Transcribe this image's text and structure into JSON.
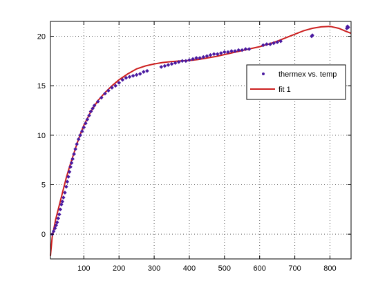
{
  "chart_data": {
    "type": "scatter",
    "title": "",
    "xlabel": "",
    "ylabel": "",
    "xlim": [
      5,
      860
    ],
    "ylim": [
      -2.5,
      21.5
    ],
    "x_ticks": [
      100,
      200,
      300,
      400,
      500,
      600,
      700,
      800
    ],
    "y_ticks": [
      0,
      5,
      10,
      15,
      20
    ],
    "grid": true,
    "grid_style": "dotted",
    "legend_position": "upper-right",
    "series": [
      {
        "name": "thermex vs. temp",
        "kind": "markers",
        "color": "#4a1aa0",
        "points": [
          [
            10,
            0.0
          ],
          [
            14,
            0.3
          ],
          [
            18,
            0.6
          ],
          [
            21,
            0.9
          ],
          [
            24,
            1.2
          ],
          [
            27,
            1.6
          ],
          [
            30,
            2.0
          ],
          [
            33,
            2.5
          ],
          [
            36,
            3.0
          ],
          [
            39,
            3.3
          ],
          [
            42,
            3.7
          ],
          [
            46,
            4.2
          ],
          [
            50,
            4.8
          ],
          [
            53,
            5.3
          ],
          [
            56,
            5.8
          ],
          [
            59,
            6.3
          ],
          [
            62,
            6.8
          ],
          [
            65,
            7.2
          ],
          [
            68,
            7.6
          ],
          [
            72,
            8.1
          ],
          [
            76,
            8.6
          ],
          [
            80,
            9.1
          ],
          [
            85,
            9.6
          ],
          [
            90,
            10.0
          ],
          [
            95,
            10.4
          ],
          [
            100,
            10.8
          ],
          [
            105,
            11.2
          ],
          [
            110,
            11.6
          ],
          [
            115,
            12.0
          ],
          [
            120,
            12.4
          ],
          [
            125,
            12.7
          ],
          [
            130,
            13.0
          ],
          [
            140,
            13.4
          ],
          [
            150,
            13.8
          ],
          [
            160,
            14.2
          ],
          [
            170,
            14.5
          ],
          [
            180,
            14.8
          ],
          [
            190,
            15.0
          ],
          [
            200,
            15.3
          ],
          [
            210,
            15.6
          ],
          [
            220,
            15.8
          ],
          [
            230,
            15.9
          ],
          [
            240,
            16.0
          ],
          [
            250,
            16.1
          ],
          [
            260,
            16.2
          ],
          [
            270,
            16.4
          ],
          [
            280,
            16.5
          ],
          [
            320,
            16.9
          ],
          [
            330,
            17.0
          ],
          [
            340,
            17.1
          ],
          [
            350,
            17.2
          ],
          [
            360,
            17.3
          ],
          [
            370,
            17.4
          ],
          [
            380,
            17.5
          ],
          [
            390,
            17.5
          ],
          [
            400,
            17.6
          ],
          [
            410,
            17.7
          ],
          [
            420,
            17.8
          ],
          [
            430,
            17.8
          ],
          [
            440,
            17.9
          ],
          [
            450,
            18.0
          ],
          [
            460,
            18.1
          ],
          [
            470,
            18.2
          ],
          [
            480,
            18.2
          ],
          [
            490,
            18.3
          ],
          [
            500,
            18.4
          ],
          [
            510,
            18.4
          ],
          [
            520,
            18.5
          ],
          [
            530,
            18.5
          ],
          [
            540,
            18.6
          ],
          [
            550,
            18.6
          ],
          [
            560,
            18.7
          ],
          [
            570,
            18.7
          ],
          [
            610,
            19.1
          ],
          [
            620,
            19.2
          ],
          [
            630,
            19.2
          ],
          [
            640,
            19.3
          ],
          [
            650,
            19.4
          ],
          [
            660,
            19.5
          ],
          [
            748,
            20.0
          ],
          [
            750,
            20.1
          ],
          [
            848,
            20.8
          ],
          [
            850,
            21.0
          ],
          [
            852,
            20.9
          ]
        ]
      },
      {
        "name": "fit 1",
        "kind": "line",
        "color": "#cc1f1f",
        "points": [
          [
            5,
            -2.2
          ],
          [
            10,
            -0.3
          ],
          [
            20,
            1.5
          ],
          [
            30,
            2.9
          ],
          [
            40,
            4.3
          ],
          [
            50,
            5.7
          ],
          [
            60,
            6.9
          ],
          [
            70,
            8.0
          ],
          [
            80,
            9.1
          ],
          [
            90,
            10.1
          ],
          [
            100,
            11.0
          ],
          [
            120,
            12.4
          ],
          [
            140,
            13.5
          ],
          [
            160,
            14.3
          ],
          [
            180,
            15.0
          ],
          [
            200,
            15.6
          ],
          [
            225,
            16.2
          ],
          [
            250,
            16.7
          ],
          [
            275,
            17.0
          ],
          [
            300,
            17.2
          ],
          [
            325,
            17.35
          ],
          [
            350,
            17.45
          ],
          [
            375,
            17.5
          ],
          [
            400,
            17.55
          ],
          [
            425,
            17.65
          ],
          [
            450,
            17.8
          ],
          [
            475,
            17.95
          ],
          [
            500,
            18.15
          ],
          [
            525,
            18.35
          ],
          [
            550,
            18.55
          ],
          [
            575,
            18.75
          ],
          [
            600,
            18.95
          ],
          [
            625,
            19.2
          ],
          [
            650,
            19.5
          ],
          [
            675,
            19.85
          ],
          [
            700,
            20.2
          ],
          [
            725,
            20.55
          ],
          [
            750,
            20.8
          ],
          [
            775,
            20.95
          ],
          [
            800,
            21.0
          ],
          [
            825,
            20.8
          ],
          [
            845,
            20.5
          ],
          [
            860,
            20.3
          ]
        ]
      }
    ],
    "legend": [
      {
        "label": "thermex vs. temp",
        "symbol": "marker",
        "color": "#4a1aa0"
      },
      {
        "label": "fit 1",
        "symbol": "line",
        "color": "#cc1f1f"
      }
    ]
  }
}
